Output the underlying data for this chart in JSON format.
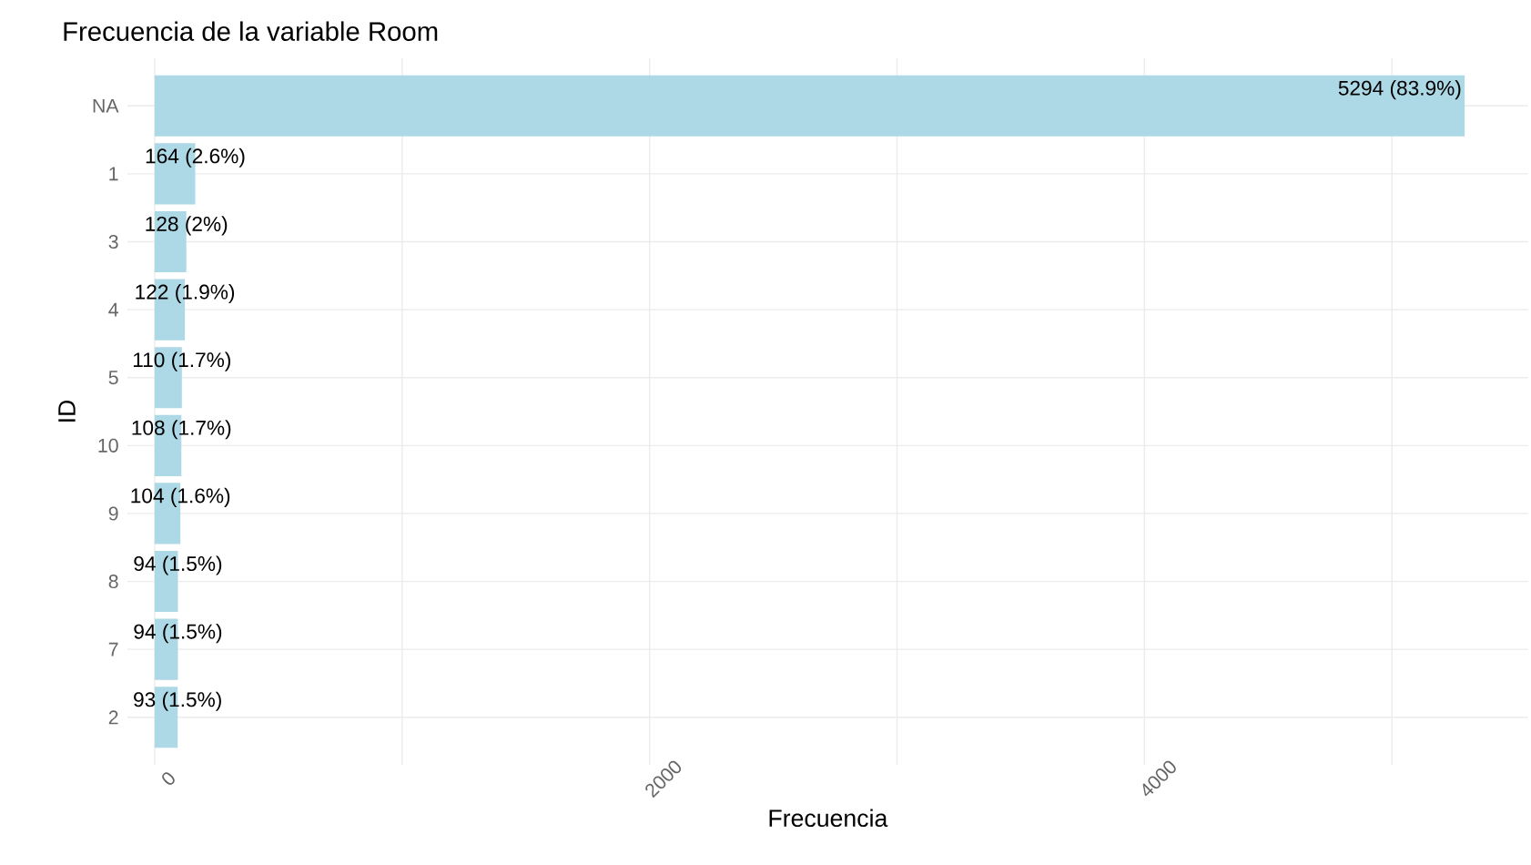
{
  "chart_data": {
    "type": "bar",
    "orientation": "horizontal",
    "title": "Frecuencia de la variable Room",
    "xlabel": "Frecuencia",
    "ylabel": "ID",
    "categories": [
      "NA",
      "1",
      "3",
      "4",
      "5",
      "10",
      "9",
      "8",
      "7",
      "2"
    ],
    "values": [
      5294,
      164,
      128,
      122,
      110,
      108,
      104,
      94,
      94,
      93
    ],
    "value_labels": [
      "5294 (83.9%)",
      "164 (2.6%)",
      "128 (2%)",
      "122 (1.9%)",
      "110 (1.7%)",
      "108 (1.7%)",
      "104 (1.6%)",
      "94 (1.5%)",
      "94 (1.5%)",
      "93 (1.5%)"
    ],
    "color": "#add8e6",
    "xlim": [
      -110,
      5550
    ],
    "xticks": [
      0,
      {
        "value": 1000,
        "label": null
      },
      2000,
      {
        "value": 3000,
        "label": null
      },
      4000,
      {
        "value": 5000,
        "label": null
      }
    ],
    "grid": true
  }
}
